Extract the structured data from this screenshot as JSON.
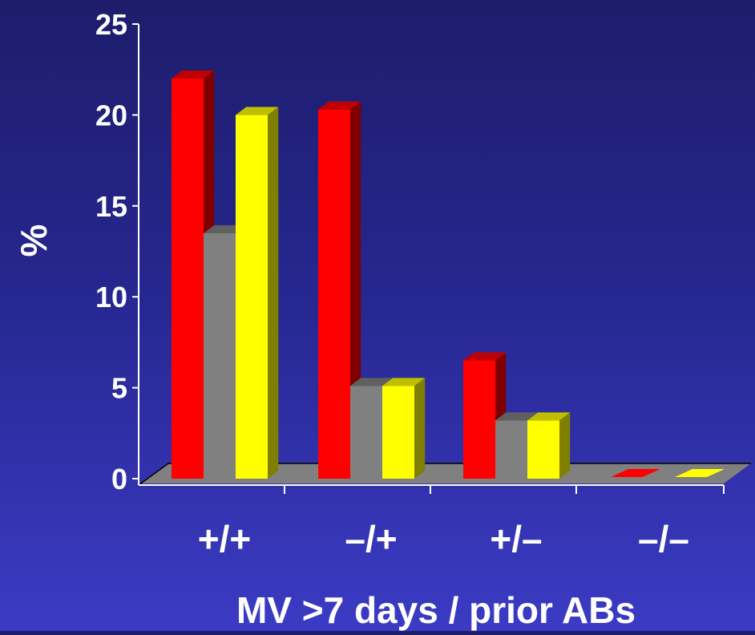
{
  "chart_data": {
    "type": "bar",
    "categories": [
      "+/+",
      "–/+",
      "+/–",
      "–/–"
    ],
    "series": [
      {
        "values": [
          22,
          20.3,
          6.5,
          0
        ],
        "color": "#ff0000"
      },
      {
        "values": [
          13.5,
          5.1,
          3.2,
          0
        ],
        "color": "#808080"
      },
      {
        "values": [
          20,
          5.1,
          3.2,
          0
        ],
        "color": "#ffff00"
      }
    ],
    "xlabel": "MV >7 days / prior ABs",
    "ylabel": "%",
    "ylim": [
      0,
      25
    ],
    "yticks": [
      "0",
      "5",
      "10",
      "15",
      "20",
      "25"
    ],
    "grid": false,
    "legend": "none",
    "style": "3d-columns"
  }
}
